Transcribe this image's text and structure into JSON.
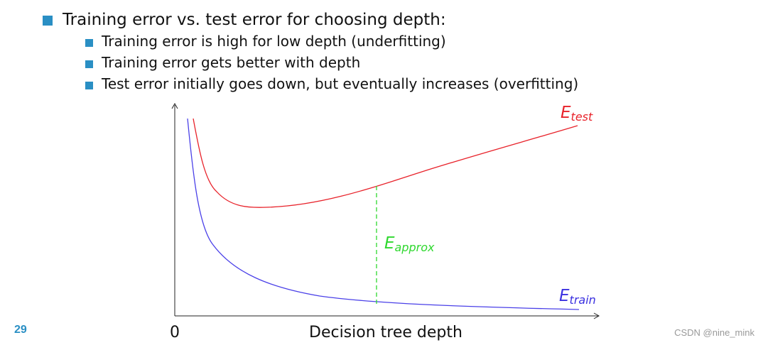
{
  "bullet": {
    "text": "Training error vs. test error for choosing depth:",
    "subitems": [
      "Training error is high for low depth (underfitting)",
      "Training error gets better with depth",
      "Test error initially goes down, but eventually increases (overfitting)"
    ]
  },
  "figure": {
    "curves": [
      {
        "symbol": "E",
        "subscript": "test"
      },
      {
        "symbol": "E",
        "subscript": "train"
      }
    ],
    "gap_label": {
      "symbol": "E",
      "subscript": "approx"
    },
    "x_origin_label": "0",
    "x_axis_label": "Decision tree depth"
  },
  "footer": {
    "page_number": "29",
    "watermark": "CSDN @nine_mink"
  }
}
